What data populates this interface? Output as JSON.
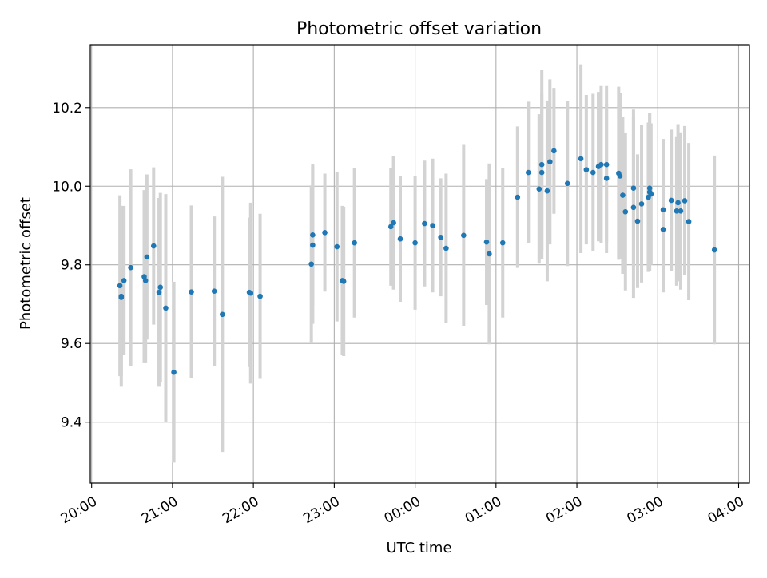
{
  "chart_data": {
    "type": "scatter",
    "title": "Photometric offset variation",
    "xlabel": "UTC time",
    "ylabel": "Photometric offset",
    "x_tick_labels": [
      "20:00",
      "21:00",
      "22:00",
      "23:00",
      "00:00",
      "01:00",
      "02:00",
      "03:00",
      "04:00"
    ],
    "y_ticks": [
      9.4,
      9.6,
      9.8,
      10.0,
      10.2
    ],
    "y_tick_labels": [
      "9.4",
      "9.6",
      "9.8",
      "10.0",
      "10.2"
    ],
    "xlim": [
      "19:59",
      "04:08"
    ],
    "ylim": [
      9.245,
      10.36
    ],
    "grid": true,
    "colors": {
      "point": "#1f77b4",
      "errorbar": "#d3d3d3",
      "grid": "#b0b0b0"
    },
    "series": [
      {
        "points": [
          {
            "x": "20:21",
            "y": 9.747,
            "err": 0.23
          },
          {
            "x": "20:22",
            "y": 9.717,
            "err": 0.2
          },
          {
            "x": "20:22",
            "y": 9.72,
            "err": 0.23
          },
          {
            "x": "20:24",
            "y": 9.76,
            "err": 0.19
          },
          {
            "x": "20:29",
            "y": 9.793,
            "err": 0.25
          },
          {
            "x": "20:39",
            "y": 9.77,
            "err": 0.22
          },
          {
            "x": "20:40",
            "y": 9.76,
            "err": 0.21
          },
          {
            "x": "20:41",
            "y": 9.82,
            "err": 0.21
          },
          {
            "x": "20:46",
            "y": 9.848,
            "err": 0.2
          },
          {
            "x": "20:50",
            "y": 9.73,
            "err": 0.24
          },
          {
            "x": "20:51",
            "y": 9.743,
            "err": 0.24
          },
          {
            "x": "20:55",
            "y": 9.69,
            "err": 0.29
          },
          {
            "x": "21:01",
            "y": 9.527,
            "err": 0.23
          },
          {
            "x": "21:14",
            "y": 9.731,
            "err": 0.22
          },
          {
            "x": "21:31",
            "y": 9.733,
            "err": 0.19
          },
          {
            "x": "21:37",
            "y": 9.674,
            "err": 0.35
          },
          {
            "x": "21:57",
            "y": 9.73,
            "err": 0.19
          },
          {
            "x": "21:58",
            "y": 9.728,
            "err": 0.23
          },
          {
            "x": "22:05",
            "y": 9.72,
            "err": 0.21
          },
          {
            "x": "22:43",
            "y": 9.802,
            "err": 0.2
          },
          {
            "x": "22:44",
            "y": 9.85,
            "err": 0.2
          },
          {
            "x": "22:44",
            "y": 9.876,
            "err": 0.18
          },
          {
            "x": "22:53",
            "y": 9.882,
            "err": 0.15
          },
          {
            "x": "23:02",
            "y": 9.846,
            "err": 0.19
          },
          {
            "x": "23:06",
            "y": 9.76,
            "err": 0.19
          },
          {
            "x": "23:07",
            "y": 9.758,
            "err": 0.19
          },
          {
            "x": "23:15",
            "y": 9.856,
            "err": 0.19
          },
          {
            "x": "23:42",
            "y": 9.897,
            "err": 0.15
          },
          {
            "x": "23:44",
            "y": 9.907,
            "err": 0.17
          },
          {
            "x": "23:49",
            "y": 9.866,
            "err": 0.16
          },
          {
            "x": "00:00",
            "y": 9.856,
            "err": 0.17
          },
          {
            "x": "00:07",
            "y": 9.905,
            "err": 0.16
          },
          {
            "x": "00:13",
            "y": 9.9,
            "err": 0.17
          },
          {
            "x": "00:19",
            "y": 9.87,
            "err": 0.15
          },
          {
            "x": "00:23",
            "y": 9.842,
            "err": 0.19
          },
          {
            "x": "00:36",
            "y": 9.875,
            "err": 0.23
          },
          {
            "x": "00:53",
            "y": 9.858,
            "err": 0.16
          },
          {
            "x": "00:55",
            "y": 9.828,
            "err": 0.23
          },
          {
            "x": "01:05",
            "y": 9.856,
            "err": 0.19
          },
          {
            "x": "01:16",
            "y": 9.972,
            "err": 0.18
          },
          {
            "x": "01:24",
            "y": 10.035,
            "err": 0.18
          },
          {
            "x": "01:32",
            "y": 9.993,
            "err": 0.19
          },
          {
            "x": "01:34",
            "y": 10.035,
            "err": 0.2
          },
          {
            "x": "01:34",
            "y": 10.055,
            "err": 0.24
          },
          {
            "x": "01:38",
            "y": 9.988,
            "err": 0.23
          },
          {
            "x": "01:40",
            "y": 10.062,
            "err": 0.21
          },
          {
            "x": "01:43",
            "y": 10.09,
            "err": 0.16
          },
          {
            "x": "01:53",
            "y": 10.007,
            "err": 0.21
          },
          {
            "x": "02:03",
            "y": 10.07,
            "err": 0.24
          },
          {
            "x": "02:07",
            "y": 10.042,
            "err": 0.19
          },
          {
            "x": "02:12",
            "y": 10.035,
            "err": 0.2
          },
          {
            "x": "02:16",
            "y": 10.05,
            "err": 0.19
          },
          {
            "x": "02:18",
            "y": 10.055,
            "err": 0.2
          },
          {
            "x": "02:22",
            "y": 10.02,
            "err": 0.19
          },
          {
            "x": "02:22",
            "y": 10.055,
            "err": 0.2
          },
          {
            "x": "02:31",
            "y": 10.033,
            "err": 0.22
          },
          {
            "x": "02:32",
            "y": 10.026,
            "err": 0.21
          },
          {
            "x": "02:34",
            "y": 9.977,
            "err": 0.2
          },
          {
            "x": "02:36",
            "y": 9.935,
            "err": 0.2
          },
          {
            "x": "02:42",
            "y": 9.995,
            "err": 0.2
          },
          {
            "x": "02:42",
            "y": 9.946,
            "err": 0.23
          },
          {
            "x": "02:45",
            "y": 9.911,
            "err": 0.17
          },
          {
            "x": "02:48",
            "y": 9.955,
            "err": 0.2
          },
          {
            "x": "02:53",
            "y": 9.972,
            "err": 0.19
          },
          {
            "x": "02:54",
            "y": 9.985,
            "err": 0.2
          },
          {
            "x": "02:54",
            "y": 9.995,
            "err": 0.19
          },
          {
            "x": "02:55",
            "y": 9.98,
            "err": 0.18
          },
          {
            "x": "03:04",
            "y": 9.94,
            "err": 0.18
          },
          {
            "x": "03:04",
            "y": 9.89,
            "err": 0.16
          },
          {
            "x": "03:10",
            "y": 9.964,
            "err": 0.18
          },
          {
            "x": "03:14",
            "y": 9.937,
            "err": 0.19
          },
          {
            "x": "03:15",
            "y": 9.958,
            "err": 0.2
          },
          {
            "x": "03:17",
            "y": 9.937,
            "err": 0.2
          },
          {
            "x": "03:20",
            "y": 9.963,
            "err": 0.19
          },
          {
            "x": "03:23",
            "y": 9.91,
            "err": 0.2
          },
          {
            "x": "03:42",
            "y": 9.838,
            "err": 0.24
          }
        ]
      }
    ]
  }
}
